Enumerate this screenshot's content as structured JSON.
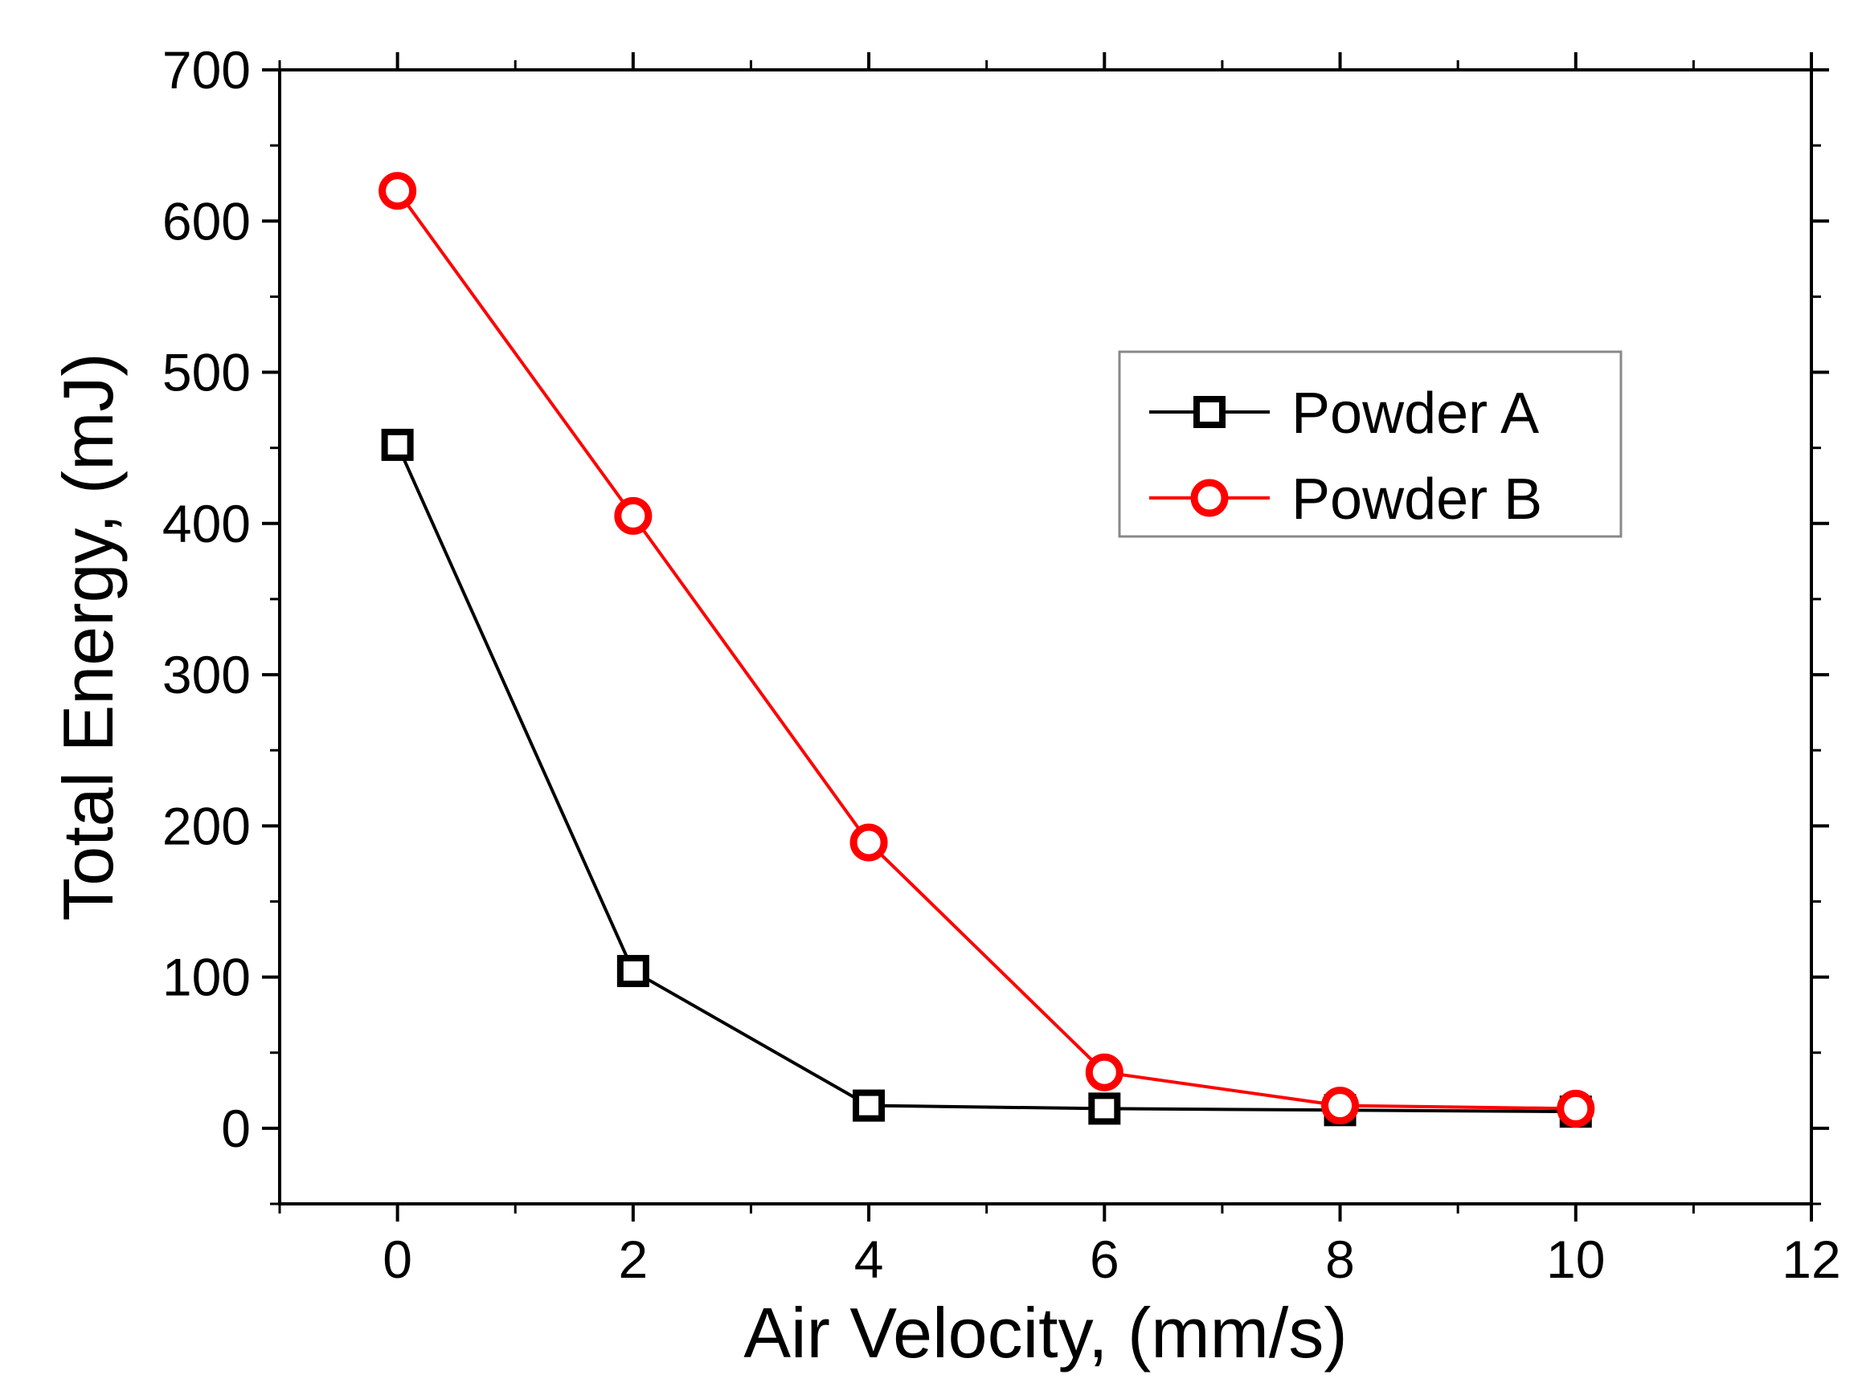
{
  "chart_data": {
    "type": "line",
    "xlabel": "Air Velocity, (mm/s)",
    "ylabel": "Total Energy, (mJ)",
    "xlim": [
      -1,
      12
    ],
    "ylim": [
      -50,
      700
    ],
    "xticks": [
      0,
      2,
      4,
      6,
      8,
      10,
      12
    ],
    "yticks": [
      0,
      100,
      200,
      300,
      400,
      500,
      600,
      700
    ],
    "x_minor_step": 1,
    "y_minor_step": 50,
    "legend_position": "upper-right",
    "series": [
      {
        "name": "Powder A",
        "marker": "square",
        "color": "#000000",
        "x": [
          0,
          2,
          4,
          6,
          8,
          10
        ],
        "values": [
          452,
          104,
          15,
          13,
          12,
          11
        ]
      },
      {
        "name": "Powder B",
        "marker": "circle",
        "color": "#ff0000",
        "x": [
          0,
          2,
          4,
          6,
          8,
          10
        ],
        "values": [
          620,
          405,
          189,
          37,
          15,
          13
        ]
      }
    ]
  }
}
